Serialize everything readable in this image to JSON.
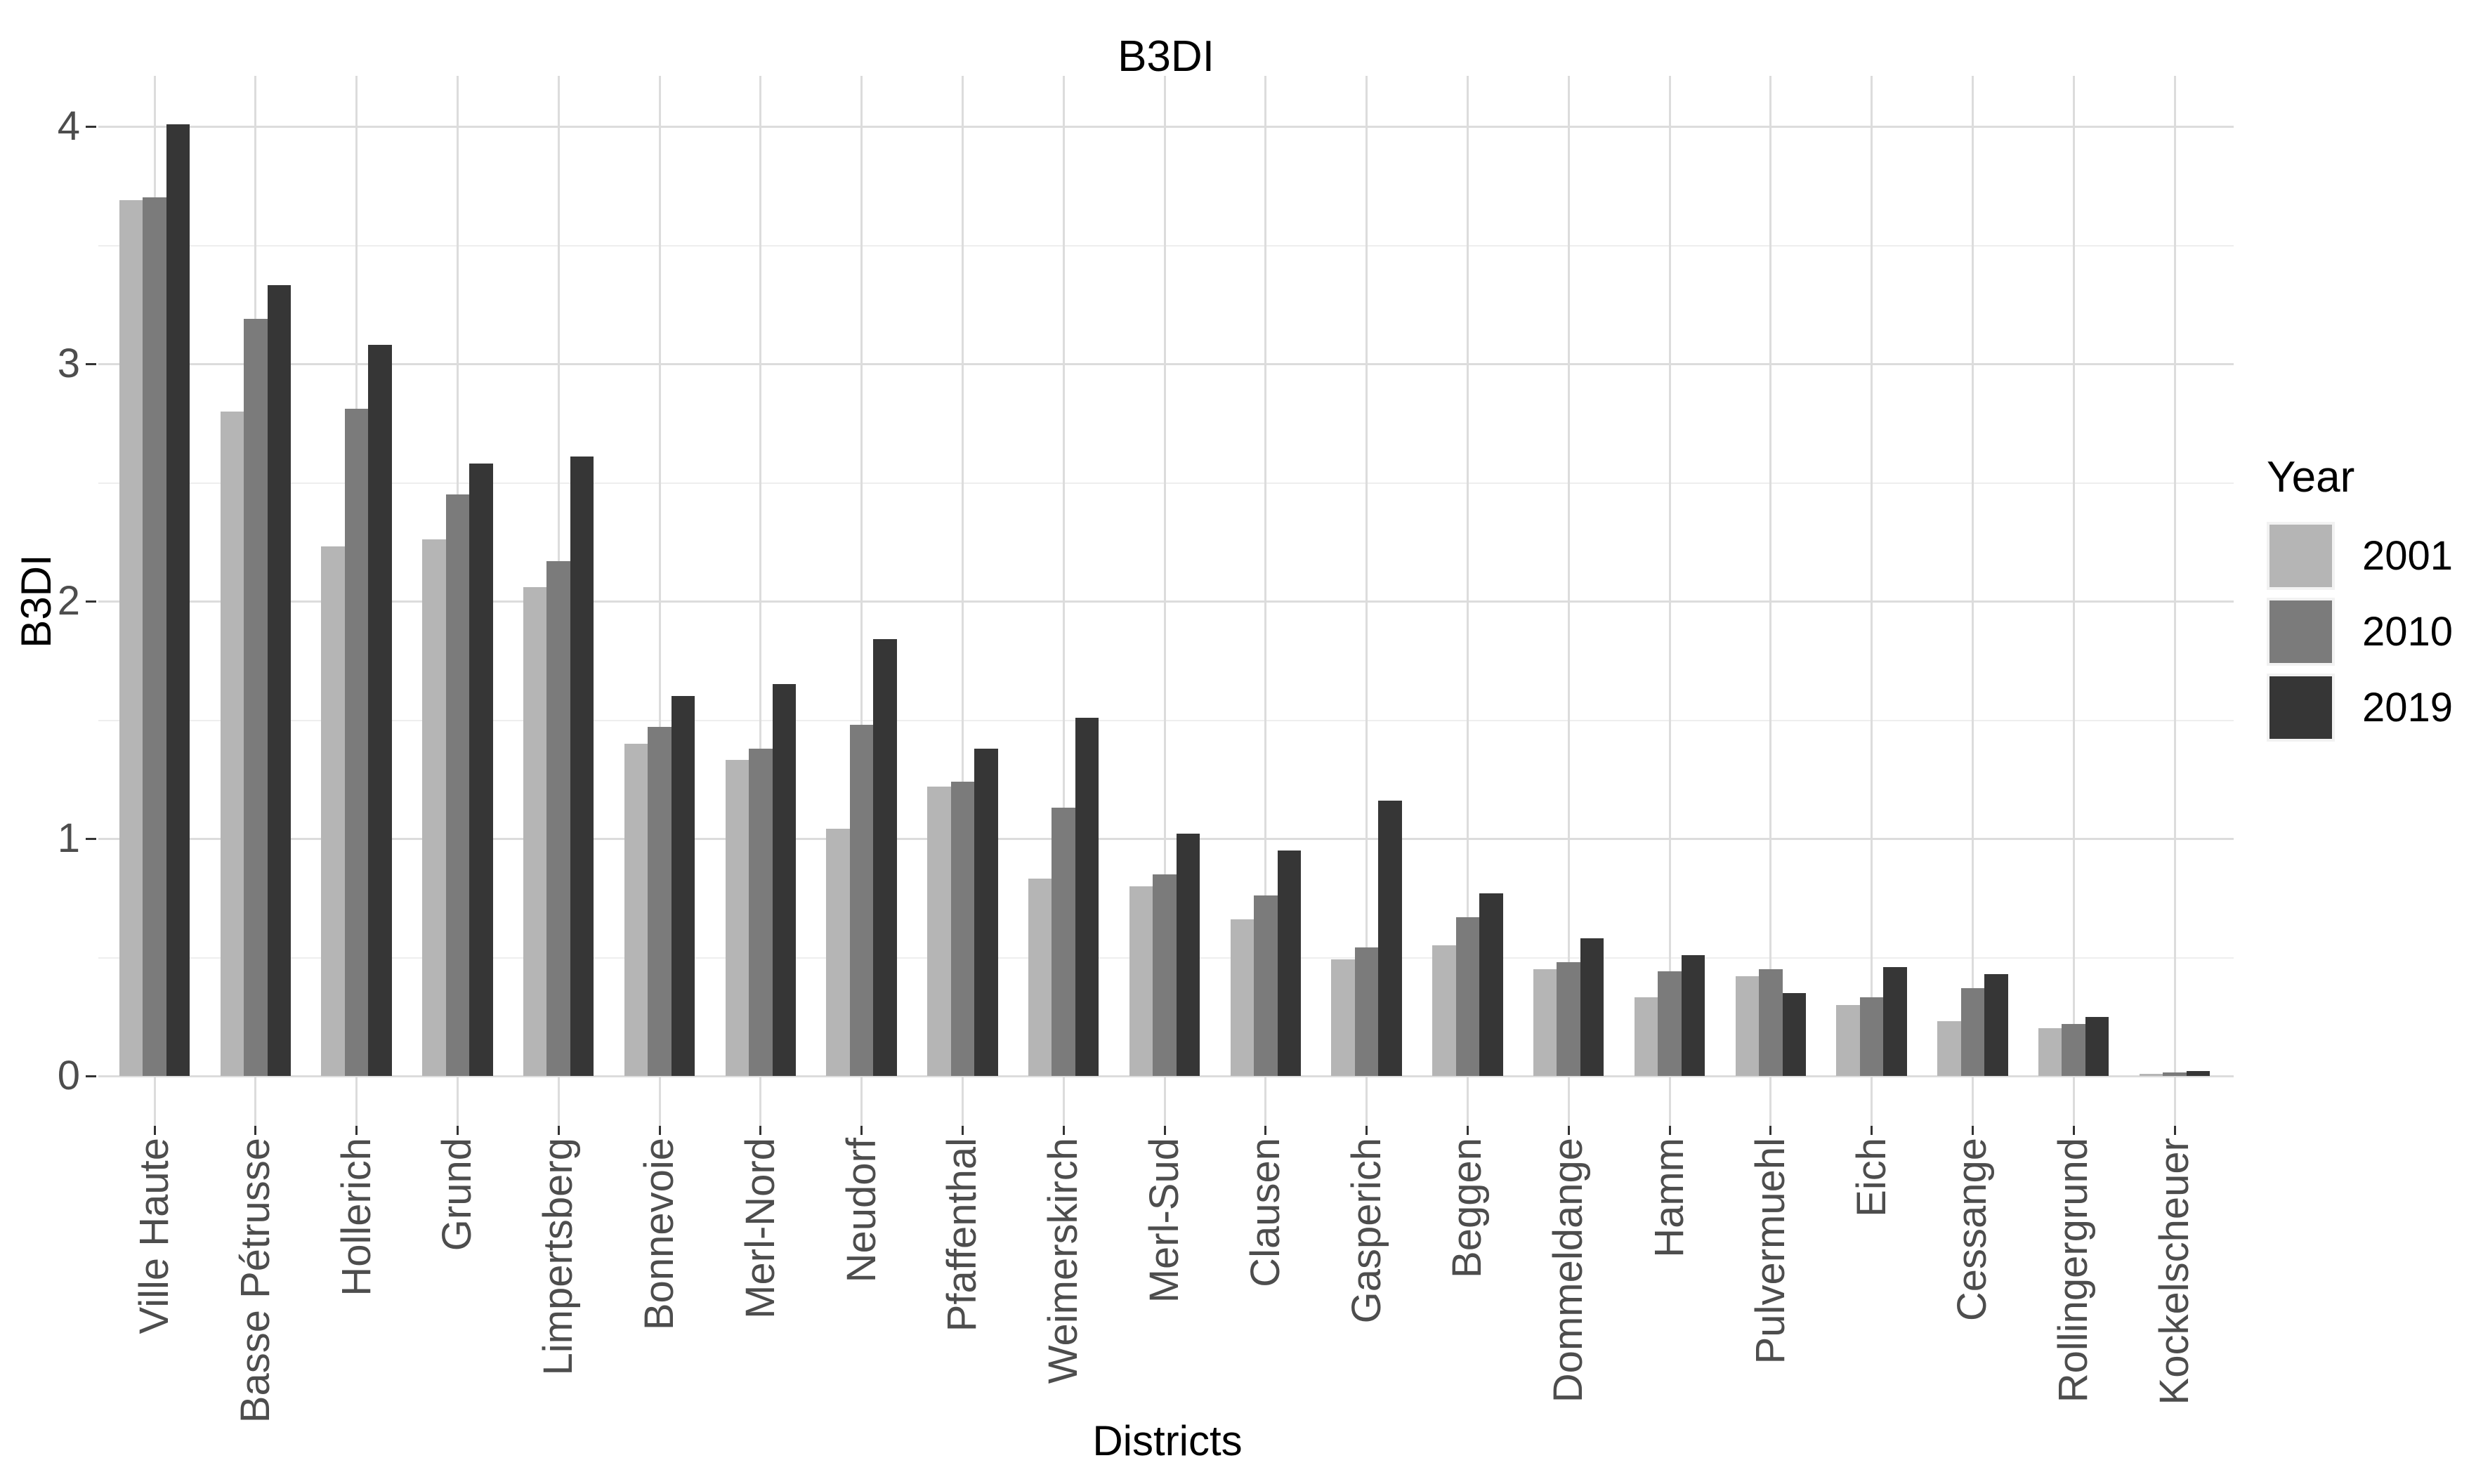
{
  "chart_data": {
    "type": "bar",
    "title": "B3DI",
    "xlabel": "Districts",
    "ylabel": "B3DI",
    "legend_title": "Year",
    "legend_position": "right",
    "grid": true,
    "ylim": [
      0,
      4.2
    ],
    "yticks": [
      "0",
      "1",
      "2",
      "3",
      "4"
    ],
    "categories": [
      "Ville Haute",
      "Basse Pétrusse",
      "Hollerich",
      "Grund",
      "Limpertsberg",
      "Bonnevoie",
      "Merl-Nord",
      "Neudorf",
      "Pfaffenthal",
      "Weimerskirch",
      "Merl-Sud",
      "Clausen",
      "Gasperich",
      "Beggen",
      "Dommeldange",
      "Hamm",
      "Pulvermuehl",
      "Eich",
      "Cessange",
      "Rollingergrund",
      "Kockelscheuer"
    ],
    "series": [
      {
        "name": "2001",
        "color": "#b5b5b5",
        "values": [
          3.69,
          2.8,
          2.23,
          2.26,
          2.06,
          1.4,
          1.33,
          1.04,
          1.22,
          0.83,
          0.8,
          0.66,
          0.49,
          0.55,
          0.45,
          0.33,
          0.42,
          0.3,
          0.23,
          0.2,
          0.01
        ]
      },
      {
        "name": "2010",
        "color": "#7b7b7b",
        "values": [
          3.7,
          3.19,
          2.81,
          2.45,
          2.17,
          1.47,
          1.38,
          1.48,
          1.24,
          1.13,
          0.85,
          0.76,
          0.54,
          0.67,
          0.48,
          0.44,
          0.45,
          0.33,
          0.37,
          0.22,
          0.015
        ]
      },
      {
        "name": "2019",
        "color": "#363636",
        "values": [
          4.01,
          3.33,
          3.08,
          2.58,
          2.61,
          1.6,
          1.65,
          1.84,
          1.38,
          1.51,
          1.02,
          0.95,
          1.16,
          0.77,
          0.58,
          0.51,
          0.35,
          0.46,
          0.43,
          0.25,
          0.02
        ]
      }
    ],
    "text_colors": {
      "tick_labels": "#4d4d4d",
      "titles": "#000000"
    }
  }
}
